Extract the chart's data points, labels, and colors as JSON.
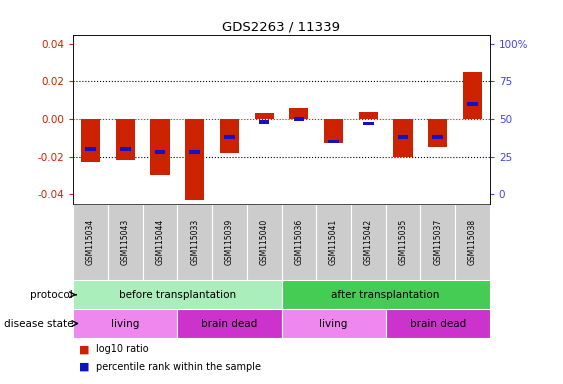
{
  "title": "GDS2263 / 11339",
  "samples": [
    "GSM115034",
    "GSM115043",
    "GSM115044",
    "GSM115033",
    "GSM115039",
    "GSM115040",
    "GSM115036",
    "GSM115041",
    "GSM115042",
    "GSM115035",
    "GSM115037",
    "GSM115038"
  ],
  "log10_ratio": [
    -0.023,
    -0.022,
    -0.03,
    -0.043,
    -0.018,
    0.003,
    0.006,
    -0.013,
    0.004,
    -0.02,
    -0.015,
    0.025
  ],
  "percentile_rank": [
    30,
    30,
    28,
    28,
    38,
    48,
    50,
    35,
    47,
    38,
    38,
    60
  ],
  "protocol_groups": [
    {
      "label": "before transplantation",
      "start": 0,
      "end": 6
    },
    {
      "label": "after transplantation",
      "start": 6,
      "end": 12
    }
  ],
  "disease_groups": [
    {
      "label": "living",
      "start": 0,
      "end": 3
    },
    {
      "label": "brain dead",
      "start": 3,
      "end": 6
    },
    {
      "label": "living",
      "start": 6,
      "end": 9
    },
    {
      "label": "brain dead",
      "start": 9,
      "end": 12
    }
  ],
  "ylim": [
    -0.045,
    0.045
  ],
  "yticks_left": [
    -0.04,
    -0.02,
    0.0,
    0.02,
    0.04
  ],
  "yticks_right": [
    0,
    25,
    50,
    75,
    100
  ],
  "bar_color_red": "#CC2200",
  "bar_color_blue": "#1111CC",
  "axis_label_color_red": "#CC2200",
  "axis_label_color_blue": "#4444DD",
  "living_color": "#EE88EE",
  "brain_dead_color": "#CC33CC",
  "before_transplant_color": "#AAEEBB",
  "after_transplant_color": "#44CC55",
  "sample_bg_color": "#CCCCCC",
  "legend_red": "log10 ratio",
  "legend_blue": "percentile rank within the sample",
  "label_protocol": "protocol",
  "label_disease": "disease state"
}
